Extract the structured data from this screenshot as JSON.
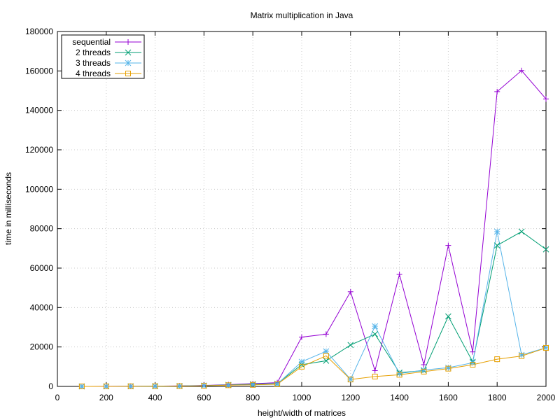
{
  "chart_data": {
    "type": "line",
    "title": "Matrix multiplication in Java",
    "xlabel": "height/width of matrices",
    "ylabel": "time in milliseconds",
    "xlim": [
      0,
      2000
    ],
    "ylim": [
      0,
      180000
    ],
    "xticks": [
      0,
      200,
      400,
      600,
      800,
      1000,
      1200,
      1400,
      1600,
      1800,
      2000
    ],
    "yticks": [
      0,
      20000,
      40000,
      60000,
      80000,
      100000,
      120000,
      140000,
      160000,
      180000
    ],
    "grid": true,
    "legend_position": "top-left",
    "x": [
      100,
      200,
      300,
      400,
      500,
      600,
      700,
      800,
      900,
      1000,
      1100,
      1200,
      1300,
      1400,
      1500,
      1600,
      1700,
      1800,
      1900,
      2000
    ],
    "series": [
      {
        "name": "sequential",
        "color": "#9400d3",
        "marker": "plus",
        "values": [
          0,
          30,
          80,
          150,
          250,
          500,
          900,
          1400,
          1900,
          25000,
          26500,
          48000,
          8000,
          56800,
          11000,
          71500,
          17500,
          149500,
          160200,
          145800
        ]
      },
      {
        "name": "2 threads",
        "color": "#009e73",
        "marker": "cross",
        "values": [
          0,
          20,
          60,
          120,
          200,
          400,
          750,
          1100,
          1400,
          11000,
          13000,
          21000,
          26500,
          7000,
          8000,
          35500,
          12500,
          71500,
          78500,
          69500
        ]
      },
      {
        "name": "3 threads",
        "color": "#56b4e9",
        "marker": "star",
        "values": [
          0,
          20,
          50,
          100,
          180,
          350,
          650,
          900,
          1200,
          12500,
          17800,
          3600,
          30500,
          6500,
          8300,
          9500,
          12000,
          78500,
          16000,
          19600
        ]
      },
      {
        "name": "4 threads",
        "color": "#e69f00",
        "marker": "square",
        "values": [
          0,
          20,
          50,
          100,
          150,
          300,
          600,
          800,
          1100,
          10000,
          15500,
          3500,
          5000,
          5900,
          7500,
          9000,
          11000,
          13800,
          15400,
          19500
        ]
      }
    ]
  }
}
